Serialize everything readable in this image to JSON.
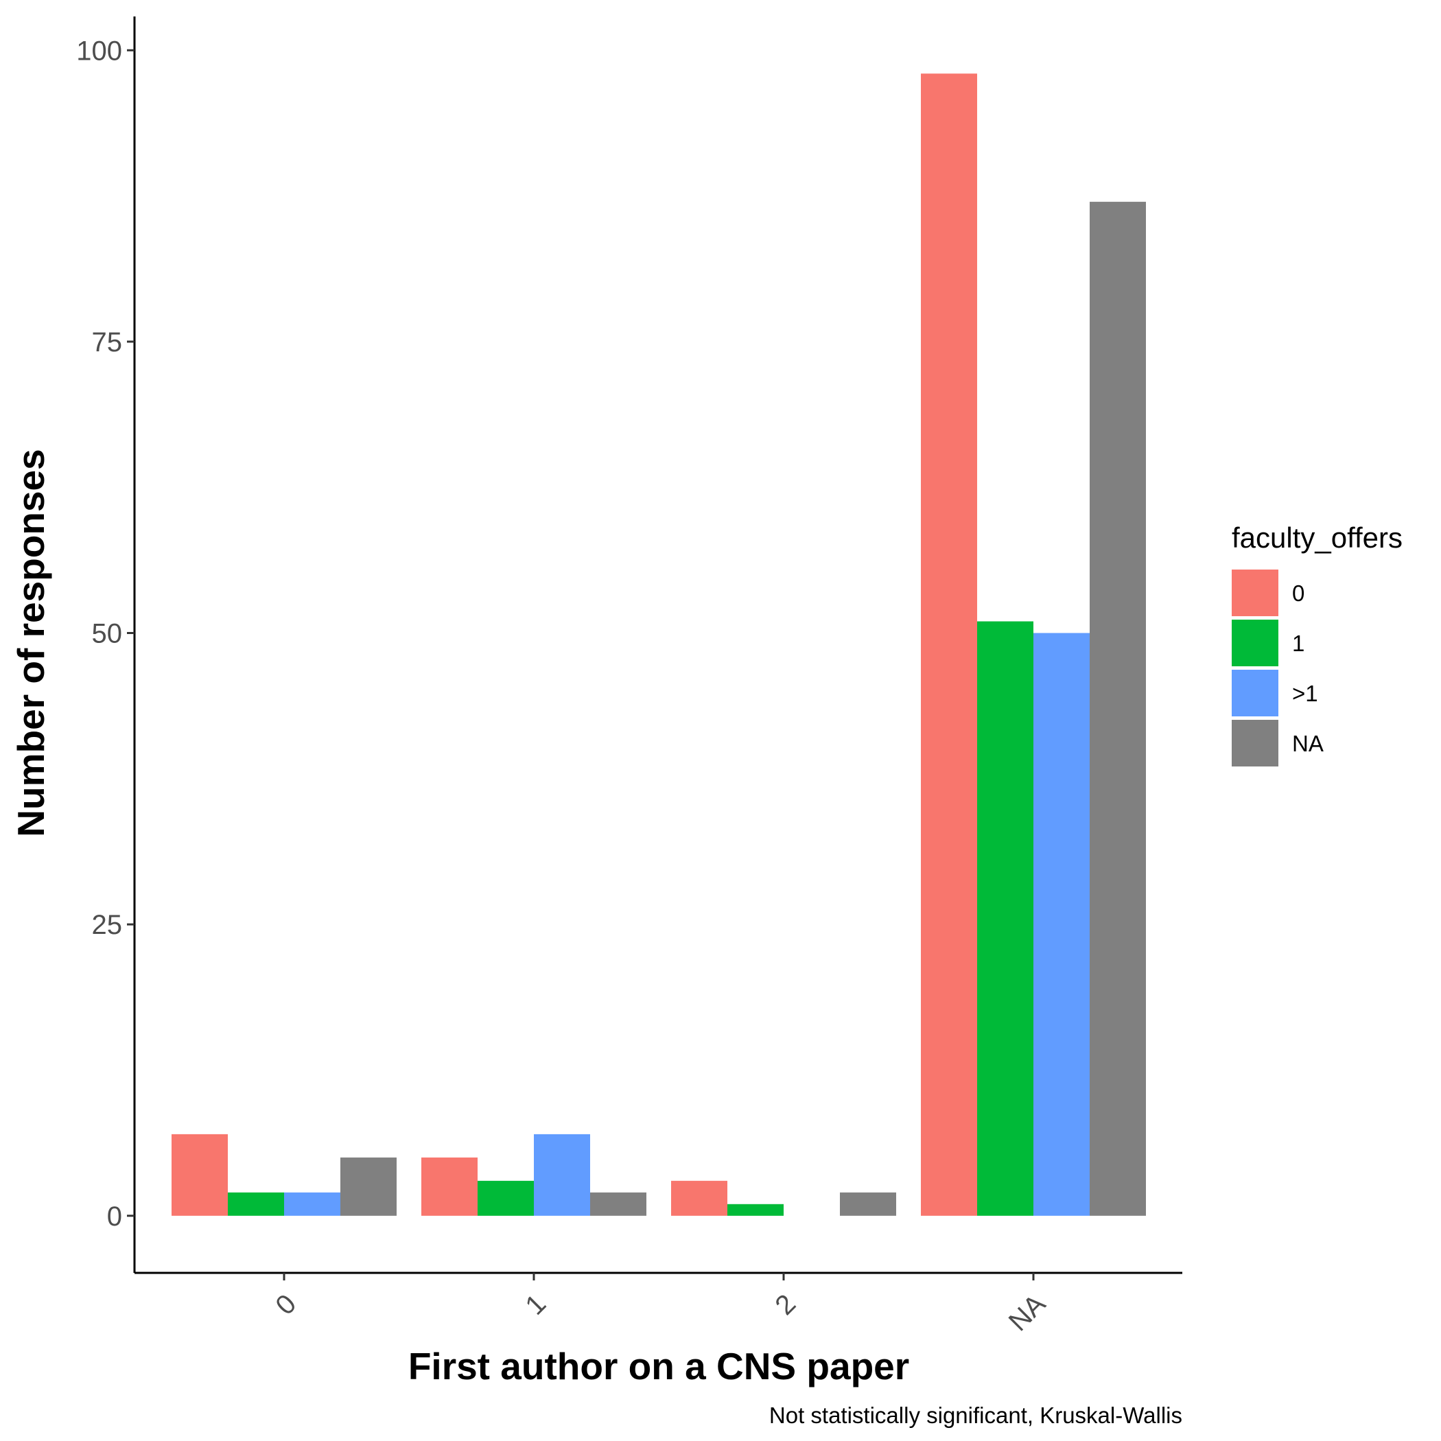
{
  "chart_data": {
    "type": "bar",
    "categories": [
      "0",
      "1",
      "2",
      "NA"
    ],
    "series": [
      {
        "name": "0",
        "color": "#F8766D",
        "values": [
          7,
          5,
          3,
          98
        ]
      },
      {
        "name": "1",
        "color": "#00BA38",
        "values": [
          2,
          3,
          1,
          51
        ]
      },
      {
        "name": ">1",
        "color": "#619CFF",
        "values": [
          2,
          7,
          null,
          50
        ]
      },
      {
        "name": "NA",
        "color": "#808080",
        "values": [
          5,
          2,
          2,
          87
        ]
      }
    ],
    "xlabel": "First author on a CNS paper",
    "ylabel": "Number of responses",
    "legend_title": "faculty_offers",
    "caption": "Not statistically significant, Kruskal-Wallis",
    "yticks": [
      0,
      25,
      50,
      75,
      100
    ],
    "ylim": [
      -4.9,
      102.9
    ],
    "legend_position": "right",
    "grid": false
  }
}
